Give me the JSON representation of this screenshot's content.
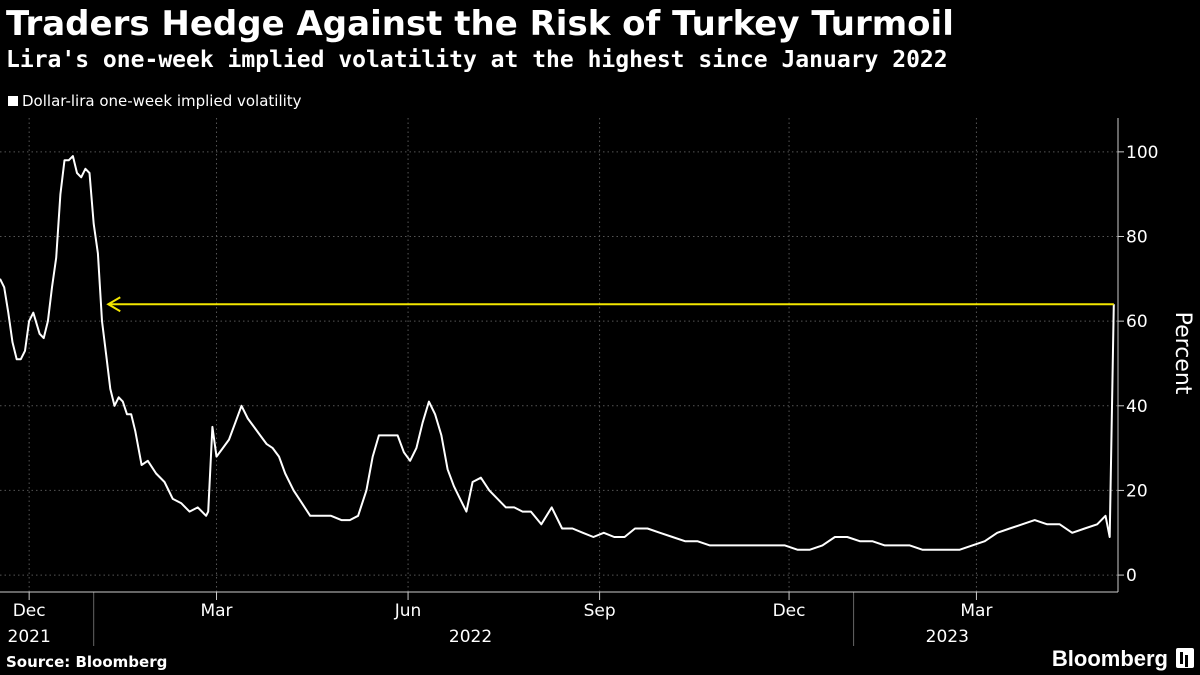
{
  "chart_data": {
    "type": "line",
    "title": "Traders Hedge Against the Risk of Turkey Turmoil",
    "subtitle": "Lira's one-week implied volatility at the highest since January 2022",
    "ylabel": "Percent",
    "ylim": [
      -4,
      108
    ],
    "yticks": [
      0,
      20,
      40,
      60,
      80,
      100
    ],
    "xlim": [
      "2021-11-17",
      "2023-05-08"
    ],
    "grid": true,
    "legend_position": "top-left",
    "x_ticks": [
      {
        "date": "2021-12-01",
        "label": "Dec"
      },
      {
        "date": "2022-03-01",
        "label": "Mar"
      },
      {
        "date": "2022-06-01",
        "label": "Jun"
      },
      {
        "date": "2022-09-01",
        "label": "Sep"
      },
      {
        "date": "2022-12-01",
        "label": "Dec"
      },
      {
        "date": "2023-03-01",
        "label": "Mar"
      }
    ],
    "x_year_labels": [
      {
        "date": "2021-12-01",
        "label": "2021"
      },
      {
        "date": "2022-07-01",
        "label": "2022"
      },
      {
        "date": "2023-02-15",
        "label": "2023"
      }
    ],
    "annotation": {
      "type": "arrow",
      "value": 64,
      "from": "2023-05-06",
      "to": "2022-01-08",
      "color": "#f2e600"
    },
    "series": [
      {
        "name": "Dollar-lira one-week implied volatility",
        "color": "#ffffff",
        "x": [
          "2021-11-17",
          "2021-11-19",
          "2021-11-21",
          "2021-11-23",
          "2021-11-25",
          "2021-11-27",
          "2021-11-29",
          "2021-12-01",
          "2021-12-03",
          "2021-12-06",
          "2021-12-08",
          "2021-12-10",
          "2021-12-12",
          "2021-12-14",
          "2021-12-16",
          "2021-12-18",
          "2021-12-20",
          "2021-12-22",
          "2021-12-24",
          "2021-12-26",
          "2021-12-28",
          "2021-12-30",
          "2022-01-01",
          "2022-01-03",
          "2022-01-05",
          "2022-01-07",
          "2022-01-09",
          "2022-01-11",
          "2022-01-13",
          "2022-01-15",
          "2022-01-17",
          "2022-01-19",
          "2022-01-21",
          "2022-01-24",
          "2022-01-27",
          "2022-01-31",
          "2022-02-04",
          "2022-02-08",
          "2022-02-12",
          "2022-02-16",
          "2022-02-20",
          "2022-02-24",
          "2022-02-25",
          "2022-02-27",
          "2022-03-01",
          "2022-03-04",
          "2022-03-07",
          "2022-03-10",
          "2022-03-13",
          "2022-03-16",
          "2022-03-19",
          "2022-03-22",
          "2022-03-25",
          "2022-03-28",
          "2022-03-31",
          "2022-04-03",
          "2022-04-07",
          "2022-04-11",
          "2022-04-15",
          "2022-04-20",
          "2022-04-25",
          "2022-04-30",
          "2022-05-04",
          "2022-05-08",
          "2022-05-12",
          "2022-05-15",
          "2022-05-18",
          "2022-05-21",
          "2022-05-24",
          "2022-05-27",
          "2022-05-30",
          "2022-06-02",
          "2022-06-05",
          "2022-06-08",
          "2022-06-11",
          "2022-06-14",
          "2022-06-17",
          "2022-06-20",
          "2022-06-23",
          "2022-06-26",
          "2022-06-29",
          "2022-07-02",
          "2022-07-06",
          "2022-07-10",
          "2022-07-14",
          "2022-07-18",
          "2022-07-22",
          "2022-07-26",
          "2022-07-30",
          "2022-08-04",
          "2022-08-09",
          "2022-08-14",
          "2022-08-19",
          "2022-08-24",
          "2022-08-29",
          "2022-09-03",
          "2022-09-08",
          "2022-09-13",
          "2022-09-18",
          "2022-09-24",
          "2022-09-30",
          "2022-10-06",
          "2022-10-12",
          "2022-10-18",
          "2022-10-24",
          "2022-10-30",
          "2022-11-05",
          "2022-11-11",
          "2022-11-17",
          "2022-11-23",
          "2022-11-29",
          "2022-12-05",
          "2022-12-11",
          "2022-12-17",
          "2022-12-23",
          "2022-12-29",
          "2023-01-04",
          "2023-01-10",
          "2023-01-16",
          "2023-01-22",
          "2023-01-28",
          "2023-02-03",
          "2023-02-09",
          "2023-02-15",
          "2023-02-21",
          "2023-02-27",
          "2023-03-05",
          "2023-03-11",
          "2023-03-17",
          "2023-03-23",
          "2023-03-29",
          "2023-04-04",
          "2023-04-10",
          "2023-04-16",
          "2023-04-22",
          "2023-04-28",
          "2023-05-02",
          "2023-05-04",
          "2023-05-06"
        ],
        "values": [
          70,
          68,
          62,
          55,
          51,
          51,
          53,
          60,
          62,
          57,
          56,
          60,
          68,
          75,
          90,
          98,
          98,
          99,
          95,
          94,
          96,
          95,
          83,
          76,
          60,
          52,
          44,
          40,
          42,
          41,
          38,
          38,
          34,
          26,
          27,
          24,
          22,
          18,
          17,
          15,
          16,
          14,
          15,
          35,
          28,
          30,
          32,
          36,
          40,
          37,
          35,
          33,
          31,
          30,
          28,
          24,
          20,
          17,
          14,
          14,
          14,
          13,
          13,
          14,
          20,
          28,
          33,
          33,
          33,
          33,
          29,
          27,
          30,
          36,
          41,
          38,
          33,
          25,
          21,
          18,
          15,
          22,
          23,
          20,
          18,
          16,
          16,
          15,
          15,
          12,
          16,
          11,
          11,
          10,
          9,
          10,
          9,
          9,
          11,
          11,
          10,
          9,
          8,
          8,
          7,
          7,
          7,
          7,
          7,
          7,
          7,
          6,
          6,
          7,
          9,
          9,
          8,
          8,
          7,
          7,
          7,
          6,
          6,
          6,
          6,
          7,
          8,
          10,
          11,
          12,
          13,
          12,
          12,
          10,
          11,
          12,
          14,
          9,
          64
        ]
      }
    ]
  },
  "footer": {
    "source": "Source: Bloomberg",
    "brand": "Bloomberg"
  }
}
